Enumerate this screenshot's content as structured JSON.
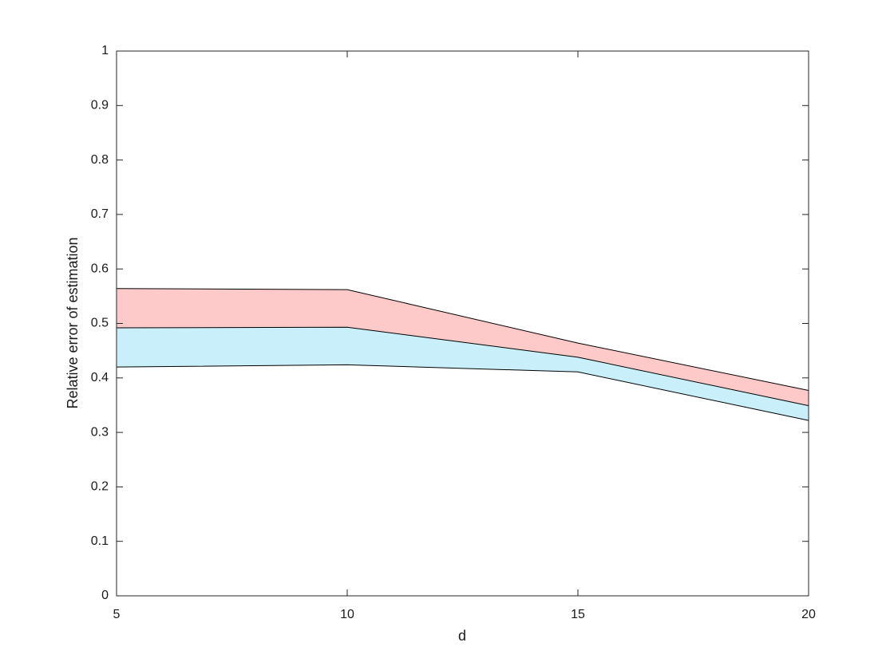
{
  "chart_data": {
    "type": "band",
    "xlabel": "d",
    "ylabel": "Relative error of estimation",
    "x": [
      5,
      10,
      15,
      20
    ],
    "series": [
      {
        "color": "#000000",
        "values": [
          0.42,
          0.424,
          0.411,
          0.322
        ]
      },
      {
        "color": "#000000",
        "fill": "#c9f0fa",
        "values": [
          0.492,
          0.493,
          0.438,
          0.349
        ]
      },
      {
        "color": "#000000",
        "fill": "#fdc9c9",
        "values": [
          0.564,
          0.562,
          0.464,
          0.377
        ]
      }
    ],
    "xlim": [
      5,
      20
    ],
    "ylim": [
      0,
      1
    ],
    "xticks": [
      5,
      10,
      15,
      20
    ],
    "yticks": [
      0,
      0.1,
      0.2,
      0.3,
      0.4,
      0.5,
      0.6,
      0.7,
      0.8,
      0.9,
      1
    ],
    "grid": false
  }
}
